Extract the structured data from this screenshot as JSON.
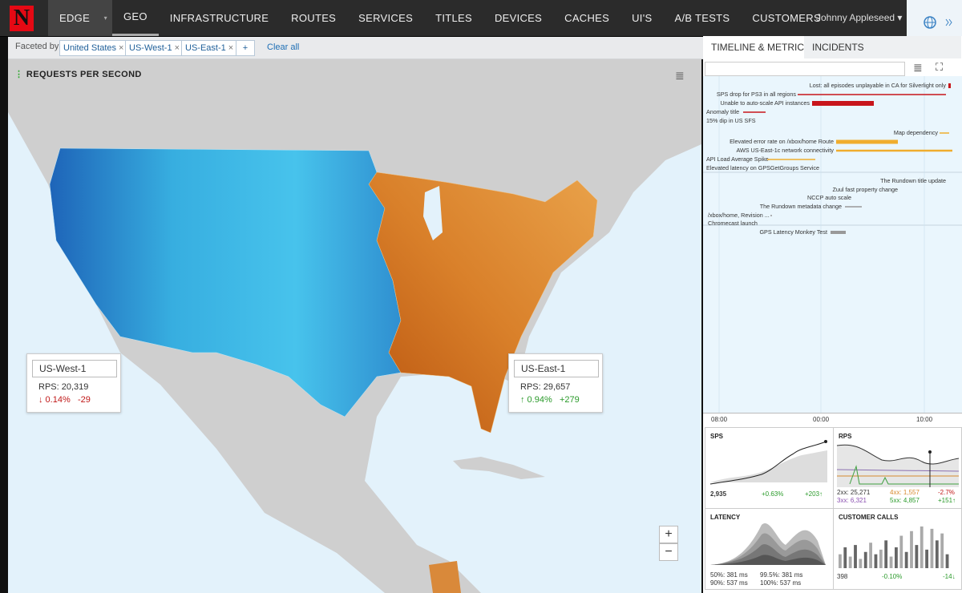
{
  "nav": {
    "logo": "N",
    "items": [
      "EDGE",
      "GEO",
      "INFRASTRUCTURE",
      "ROUTES",
      "SERVICES",
      "TITLES",
      "DEVICES",
      "CACHES",
      "UI'S",
      "A/B TESTS",
      "CUSTOMERS"
    ],
    "user": "Johnny Appleseed"
  },
  "filters": {
    "label": "Faceted by:",
    "chips": [
      "United States",
      "US-West-1",
      "US-East-1"
    ],
    "add": "+",
    "clear": "Clear all"
  },
  "map": {
    "title": "REQUESTS PER SECOND",
    "cards": [
      {
        "region": "US-West-1",
        "rps": "RPS: 20,319",
        "change": "↓ 0.14%",
        "delta": "-29"
      },
      {
        "region": "US-East-1",
        "rps": "RPS: 29,657",
        "change": "↑ 0.94%",
        "delta": "+279"
      }
    ],
    "zoom_in": "+",
    "zoom_out": "−"
  },
  "panel": {
    "tabs": [
      "TIMELINE & METRICS",
      "INCIDENTS"
    ],
    "events": [
      "Lost: all episodes unplayable in CA for Silverlight only",
      "SPS drop for PS3 in all regions",
      "Unable to auto-scale API instances",
      "Anomaly title",
      "15% dip in US SFS",
      "Map dependency",
      "Elevated error rate on /xbox/home Route",
      "AWS US-East-1c network connectivity",
      "API Load Average Spike",
      "Elevated latency on GPSGetGroups Service",
      "The Rundown title update",
      "Zuul fast property change",
      "NCCP auto scale",
      "The Rundown metadata change",
      "/xbox/home, Revision ...",
      "Chromecast launch",
      "GPS Latency Monkey Test"
    ],
    "axis": [
      "08:00",
      "00:00",
      "10:00"
    ],
    "metrics": {
      "sps": {
        "title": "SPS",
        "value": "2,935",
        "change": "+0.63%",
        "delta": "+203↑"
      },
      "rps": {
        "title": "RPS",
        "rows": [
          [
            "2xx: 25,271",
            "4xx: 1,557",
            "-2.7%"
          ],
          [
            "3xx: 6,321",
            "5xx: 4,857",
            "+151↑"
          ]
        ]
      },
      "latency": {
        "title": "LATENCY",
        "rows": [
          [
            "50%: 381 ms",
            "99.5%: 381 ms"
          ],
          [
            "90%: 537 ms",
            "100%: 537 ms"
          ]
        ]
      },
      "customer_calls": {
        "title": "CUSTOMER CALLS",
        "value": "398",
        "change": "-0.10%",
        "delta": "-14↓",
        "bars": [
          30,
          45,
          25,
          50,
          20,
          35,
          55,
          30,
          40,
          60,
          25,
          45,
          70,
          35,
          80,
          50,
          90,
          40,
          85,
          60,
          75,
          30
        ]
      }
    }
  }
}
